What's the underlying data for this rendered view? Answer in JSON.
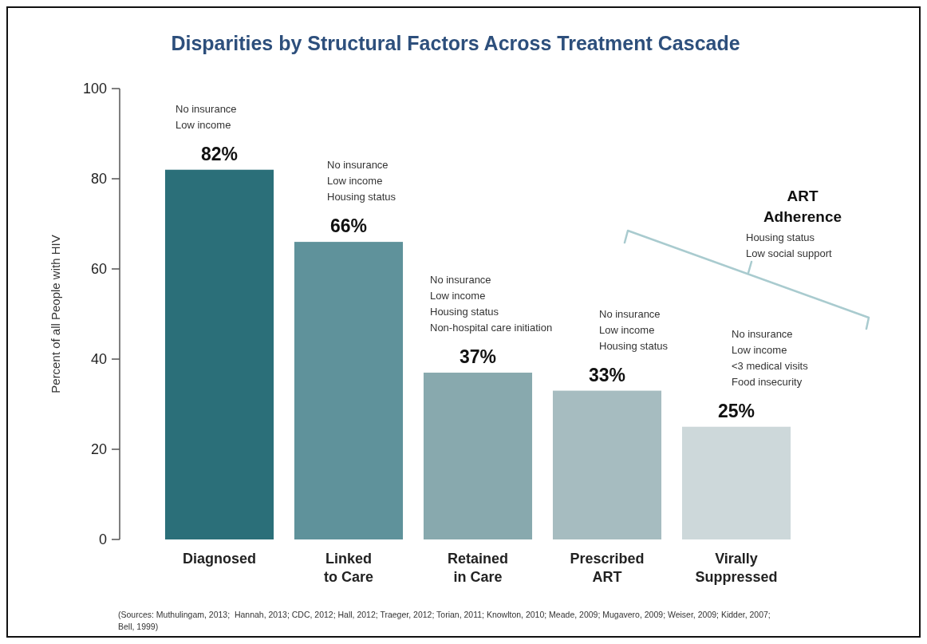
{
  "chart_data": {
    "type": "bar",
    "title": "Disparities by Structural Factors Across Treatment Cascade",
    "ylabel": "Percent of all People with HIV",
    "categories": [
      "Diagnosed",
      "Linked\nto Care",
      "Retained\nin Care",
      "Prescribed\nART",
      "Virally\nSuppressed"
    ],
    "values": [
      82,
      66,
      37,
      33,
      25
    ],
    "colors": [
      "#2b6f79",
      "#5f929b",
      "#88a9ae",
      "#a6bcc0",
      "#cdd8da"
    ],
    "value_labels": [
      "82%",
      "66%",
      "37%",
      "33%",
      "25%"
    ],
    "ylim": [
      0,
      100
    ],
    "yticks": [
      0,
      20,
      40,
      60,
      80,
      100
    ],
    "grid": false,
    "annotations": [
      "No insurance\nLow income",
      "No insurance\nLow income\nHousing status",
      "No insurance\nLow income\nHousing status\nNon-hospital care initiation",
      "No insurance\nLow income\nHousing status",
      "No insurance\nLow income\n<3 medical visits\nFood insecurity",
      "ART\nAdherence",
      "Housing status\nLow social support",
      "(Sources: Muthulingam, 2013;  Hannah, 2013; CDC, 2012; Hall, 2012; Traeger, 2012; Torian, 2011; Knowlton, 2010; Meade, 2009; Mugavero, 2009; Weiser, 2009; Kidder, 2007; Bell, 1999)"
    ]
  }
}
